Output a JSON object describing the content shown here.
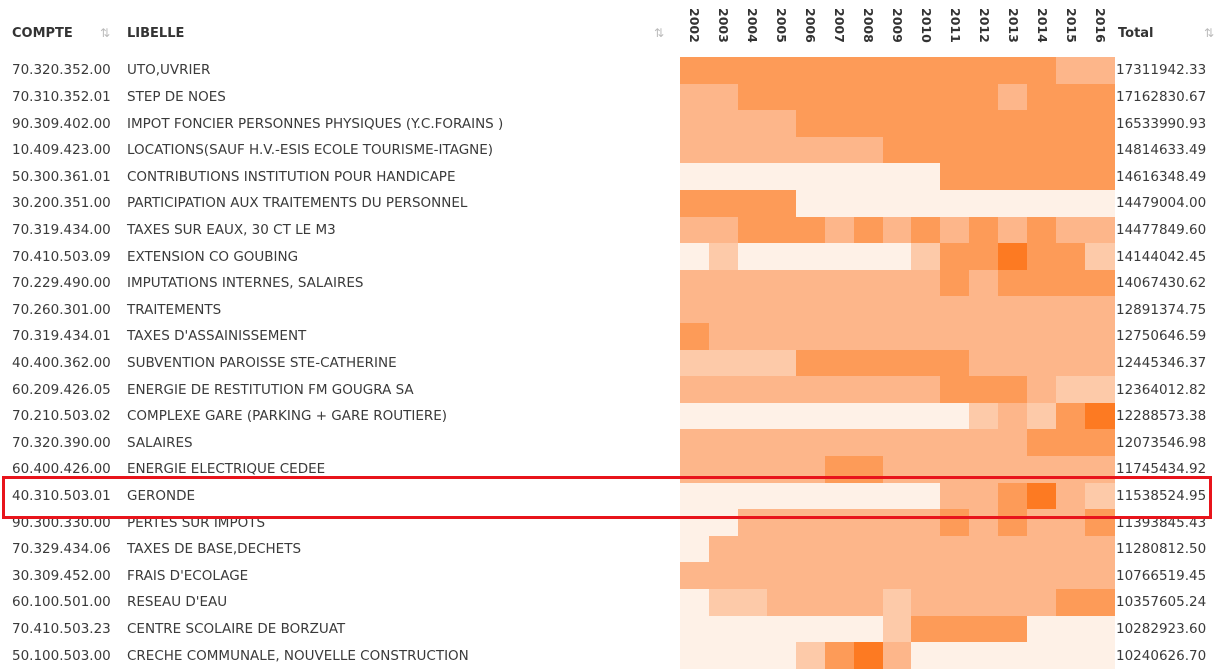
{
  "header": {
    "compte": "COMPTE",
    "libelle": "LIBELLE",
    "years": [
      "2002",
      "2003",
      "2004",
      "2005",
      "2006",
      "2007",
      "2008",
      "2009",
      "2010",
      "2011",
      "2012",
      "2013",
      "2014",
      "2015",
      "2016"
    ],
    "total": "Total"
  },
  "palette": [
    "#fef1e7",
    "#fdcaa9",
    "#fdb68a",
    "#fd9b58",
    "#fd7a22"
  ],
  "rows": [
    {
      "compte": "70.320.352.00",
      "libelle": "UTO,UVRIER",
      "total": "17311942.33",
      "shades": [
        3,
        3,
        3,
        3,
        3,
        3,
        3,
        3,
        3,
        3,
        3,
        3,
        3,
        2,
        2
      ]
    },
    {
      "compte": "70.310.352.01",
      "libelle": "STEP DE NOES",
      "total": "17162830.67",
      "shades": [
        2,
        2,
        3,
        3,
        3,
        3,
        3,
        3,
        3,
        3,
        3,
        2,
        3,
        3,
        3
      ]
    },
    {
      "compte": "90.309.402.00",
      "libelle": "IMPOT FONCIER PERSONNES PHYSIQUES (Y.C.FORAINS )",
      "total": "16533990.93",
      "shades": [
        2,
        2,
        2,
        2,
        3,
        3,
        3,
        3,
        3,
        3,
        3,
        3,
        3,
        3,
        3
      ]
    },
    {
      "compte": "10.409.423.00",
      "libelle": "LOCATIONS(SAUF H.V.-ESIS ECOLE TOURISME-ITAGNE)",
      "total": "14814633.49",
      "shades": [
        2,
        2,
        2,
        2,
        2,
        2,
        2,
        3,
        3,
        3,
        3,
        3,
        3,
        3,
        3
      ]
    },
    {
      "compte": "50.300.361.01",
      "libelle": "CONTRIBUTIONS INSTITUTION POUR HANDICAPE",
      "total": "14616348.49",
      "shades": [
        0,
        0,
        0,
        0,
        0,
        0,
        0,
        0,
        0,
        3,
        3,
        3,
        3,
        3,
        3
      ]
    },
    {
      "compte": "30.200.351.00",
      "libelle": "PARTICIPATION AUX TRAITEMENTS DU PERSONNEL",
      "total": "14479004.00",
      "shades": [
        3,
        3,
        3,
        3,
        0,
        0,
        0,
        0,
        0,
        0,
        0,
        0,
        0,
        0,
        0
      ]
    },
    {
      "compte": "70.319.434.00",
      "libelle": "TAXES SUR EAUX, 30 CT LE M3",
      "total": "14477849.60",
      "shades": [
        2,
        2,
        3,
        3,
        3,
        2,
        3,
        2,
        3,
        2,
        3,
        2,
        3,
        2,
        2
      ]
    },
    {
      "compte": "70.410.503.09",
      "libelle": "EXTENSION CO GOUBING",
      "total": "14144042.45",
      "shades": [
        0,
        1,
        0,
        0,
        0,
        0,
        0,
        0,
        1,
        3,
        3,
        4,
        3,
        3,
        1
      ]
    },
    {
      "compte": "70.229.490.00",
      "libelle": "IMPUTATIONS INTERNES, SALAIRES",
      "total": "14067430.62",
      "shades": [
        2,
        2,
        2,
        2,
        2,
        2,
        2,
        2,
        2,
        3,
        2,
        3,
        3,
        3,
        3
      ]
    },
    {
      "compte": "70.260.301.00",
      "libelle": "TRAITEMENTS",
      "total": "12891374.75",
      "shades": [
        2,
        2,
        2,
        2,
        2,
        2,
        2,
        2,
        2,
        2,
        2,
        2,
        2,
        2,
        2
      ]
    },
    {
      "compte": "70.319.434.01",
      "libelle": "TAXES D'ASSAINISSEMENT",
      "total": "12750646.59",
      "shades": [
        3,
        2,
        2,
        2,
        2,
        2,
        2,
        2,
        2,
        2,
        2,
        2,
        2,
        2,
        2
      ]
    },
    {
      "compte": "40.400.362.00",
      "libelle": "SUBVENTION PAROISSE STE-CATHERINE",
      "total": "12445346.37",
      "shades": [
        1,
        1,
        1,
        1,
        3,
        3,
        3,
        3,
        3,
        3,
        2,
        2,
        2,
        2,
        2
      ]
    },
    {
      "compte": "60.209.426.05",
      "libelle": "ENERGIE DE RESTITUTION FM GOUGRA SA",
      "total": "12364012.82",
      "shades": [
        2,
        2,
        2,
        2,
        2,
        2,
        2,
        2,
        2,
        3,
        3,
        3,
        2,
        1,
        1
      ]
    },
    {
      "compte": "70.210.503.02",
      "libelle": "COMPLEXE GARE (PARKING + GARE ROUTIERE)",
      "total": "12288573.38",
      "shades": [
        0,
        0,
        0,
        0,
        0,
        0,
        0,
        0,
        0,
        0,
        1,
        2,
        1,
        3,
        4
      ]
    },
    {
      "compte": "70.320.390.00",
      "libelle": "SALAIRES",
      "total": "12073546.98",
      "shades": [
        2,
        2,
        2,
        2,
        2,
        2,
        2,
        2,
        2,
        2,
        2,
        2,
        3,
        3,
        3
      ]
    },
    {
      "compte": "60.400.426.00",
      "libelle": "ENERGIE ELECTRIQUE CEDEE",
      "total": "11745434.92",
      "shades": [
        2,
        2,
        2,
        2,
        2,
        3,
        3,
        2,
        2,
        2,
        2,
        2,
        2,
        2,
        2
      ]
    },
    {
      "compte": "40.310.503.01",
      "libelle": "GERONDE",
      "total": "11538524.95",
      "shades": [
        0,
        0,
        0,
        0,
        0,
        0,
        0,
        0,
        0,
        2,
        2,
        3,
        4,
        2,
        1
      ]
    },
    {
      "compte": "90.300.330.00",
      "libelle": "PERTES SUR IMPOTS",
      "total": "11393845.43",
      "shades": [
        0,
        0,
        2,
        2,
        2,
        2,
        2,
        2,
        2,
        3,
        2,
        3,
        2,
        2,
        3
      ]
    },
    {
      "compte": "70.329.434.06",
      "libelle": "TAXES DE BASE,DECHETS",
      "total": "11280812.50",
      "shades": [
        0,
        2,
        2,
        2,
        2,
        2,
        2,
        2,
        2,
        2,
        2,
        2,
        2,
        2,
        2
      ]
    },
    {
      "compte": "30.309.452.00",
      "libelle": "FRAIS D'ECOLAGE",
      "total": "10766519.45",
      "shades": [
        2,
        2,
        2,
        2,
        2,
        2,
        2,
        2,
        2,
        2,
        2,
        2,
        2,
        2,
        2
      ]
    },
    {
      "compte": "60.100.501.00",
      "libelle": "RESEAU D'EAU",
      "total": "10357605.24",
      "shades": [
        0,
        1,
        1,
        2,
        2,
        2,
        2,
        1,
        2,
        2,
        2,
        2,
        2,
        3,
        3
      ]
    },
    {
      "compte": "70.410.503.23",
      "libelle": "CENTRE SCOLAIRE DE BORZUAT",
      "total": "10282923.60",
      "shades": [
        0,
        0,
        0,
        0,
        0,
        0,
        0,
        1,
        3,
        3,
        3,
        3,
        0,
        0,
        0
      ]
    },
    {
      "compte": "50.100.503.00",
      "libelle": "CRECHE COMMUNALE, NOUVELLE CONSTRUCTION",
      "total": "10240626.70",
      "shades": [
        0,
        0,
        0,
        0,
        1,
        3,
        4,
        2,
        0,
        0,
        0,
        0,
        0,
        0,
        0
      ]
    }
  ]
}
